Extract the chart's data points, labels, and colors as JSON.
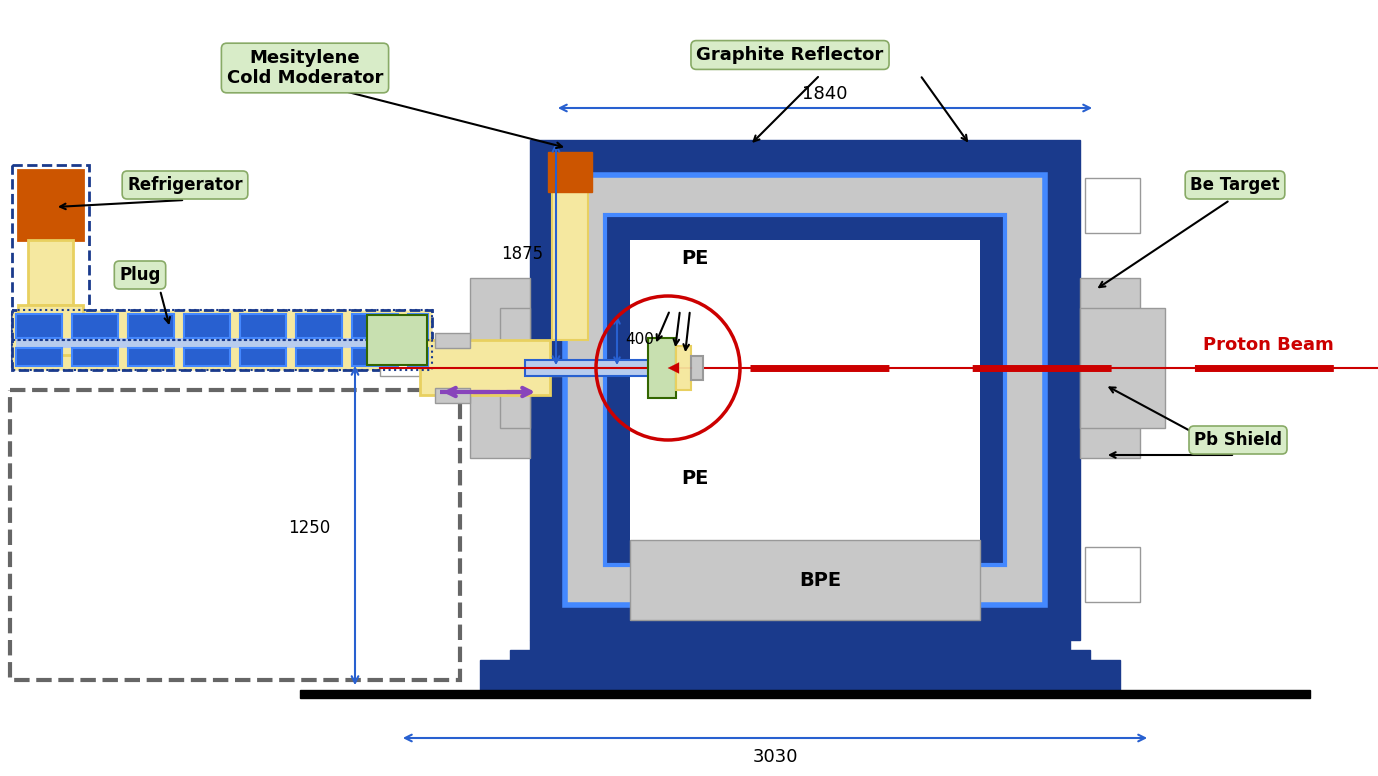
{
  "colors": {
    "blue_dark": "#1a3a8c",
    "blue_mid": "#2860d0",
    "blue_bright": "#4488ff",
    "blue_pale": "#b8ccee",
    "blue_lighter": "#6699dd",
    "gray_light": "#c8c8c8",
    "gray_mid": "#999999",
    "gray_dark": "#666666",
    "yellow_pale": "#f5e8a0",
    "yellow_mid": "#e8d060",
    "orange_brown": "#cc5500",
    "white": "#ffffff",
    "black": "#000000",
    "red": "#cc0000",
    "green_pale": "#c8e0b0",
    "green_dark": "#336600",
    "purple": "#8844bb",
    "teal": "#00aacc"
  },
  "labels": {
    "graphite_reflector": "Graphite Reflector",
    "mesitylene": "Mesitylene\nCold Moderator",
    "refrigerator": "Refrigerator",
    "plug": "Plug",
    "be_target": "Be Target",
    "pe_upper": "PE",
    "pe_lower": "PE",
    "bpe": "BPE",
    "pb_shield": "Pb Shield",
    "proton_beam": "Proton Beam"
  },
  "dimensions": {
    "d1840": "1840",
    "d1875": "1875",
    "d400": "400",
    "d1250": "1250",
    "d3030": "3030"
  }
}
